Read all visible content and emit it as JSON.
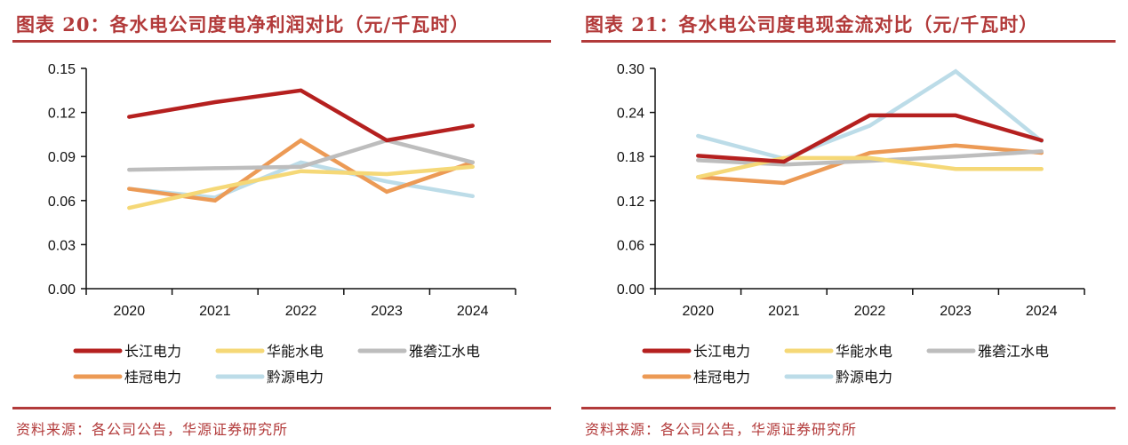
{
  "colors": {
    "accent": "#b23a3a",
    "series": {
      "长江电力": "#b5201f",
      "华能水电": "#f5d877",
      "雅砻江水电": "#bdbdbd",
      "桂冠电力": "#ec9a55",
      "黔源电力": "#bcdce8"
    }
  },
  "left": {
    "title": "图表 20：各水电公司度电净利润对比（元/千瓦时）",
    "source": "资料来源：各公司公告，华源证券研究所"
  },
  "right": {
    "title": "图表 21：各水电公司度电现金流对比（元/千瓦时）",
    "source": "资料来源：各公司公告，华源证券研究所"
  },
  "chart_data": [
    {
      "type": "line",
      "title": "图表 20：各水电公司度电净利润对比（元/千瓦时）",
      "xlabel": "",
      "ylabel": "",
      "categories": [
        "2020",
        "2021",
        "2022",
        "2023",
        "2024"
      ],
      "ylim": [
        0,
        0.15
      ],
      "yticks": [
        "0.00",
        "0.03",
        "0.06",
        "0.09",
        "0.12",
        "0.15"
      ],
      "grid": false,
      "legend": "bottom",
      "series": [
        {
          "name": "长江电力",
          "values": [
            0.117,
            0.127,
            0.135,
            0.101,
            0.111
          ]
        },
        {
          "name": "华能水电",
          "values": [
            0.055,
            0.068,
            0.08,
            0.078,
            0.083
          ]
        },
        {
          "name": "雅砻江水电",
          "values": [
            0.081,
            0.082,
            0.083,
            0.101,
            0.086
          ]
        },
        {
          "name": "桂冠电力",
          "values": [
            0.068,
            0.06,
            0.101,
            0.066,
            0.086
          ]
        },
        {
          "name": "黔源电力",
          "values": [
            0.068,
            0.062,
            0.086,
            0.073,
            0.063
          ]
        }
      ]
    },
    {
      "type": "line",
      "title": "图表 21：各水电公司度电现金流对比（元/千瓦时）",
      "xlabel": "",
      "ylabel": "",
      "categories": [
        "2020",
        "2021",
        "2022",
        "2023",
        "2024"
      ],
      "ylim": [
        0,
        0.3
      ],
      "yticks": [
        "0.00",
        "0.06",
        "0.12",
        "0.18",
        "0.24",
        "0.30"
      ],
      "grid": false,
      "legend": "bottom",
      "series": [
        {
          "name": "长江电力",
          "values": [
            0.181,
            0.173,
            0.236,
            0.236,
            0.202
          ]
        },
        {
          "name": "华能水电",
          "values": [
            0.152,
            0.178,
            0.178,
            0.163,
            0.163
          ]
        },
        {
          "name": "雅砻江水电",
          "values": [
            0.175,
            0.169,
            0.174,
            0.18,
            0.187
          ]
        },
        {
          "name": "桂冠电力",
          "values": [
            0.152,
            0.144,
            0.185,
            0.195,
            0.185
          ]
        },
        {
          "name": "黔源电力",
          "values": [
            0.208,
            0.177,
            0.222,
            0.296,
            0.201
          ]
        }
      ]
    }
  ]
}
